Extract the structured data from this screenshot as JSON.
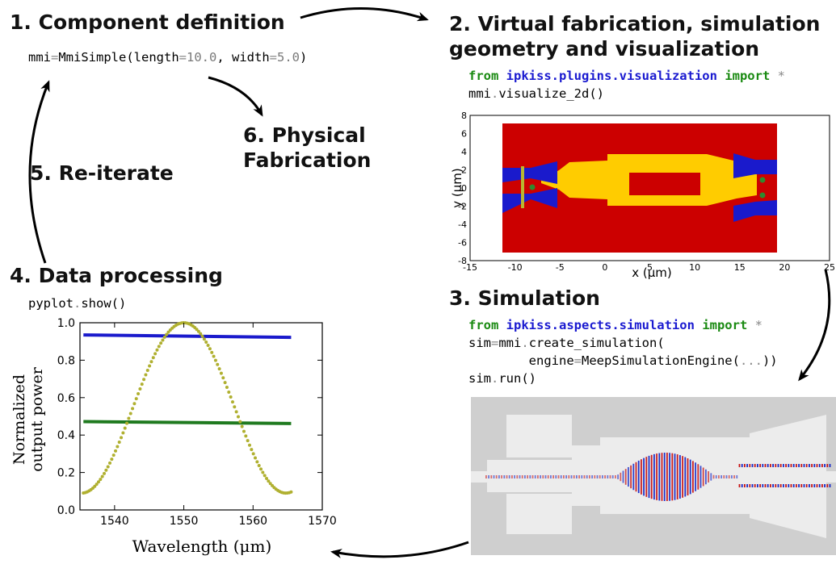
{
  "steps": {
    "s1": {
      "title": "1. Component definition"
    },
    "s2": {
      "title_line1": "2. Virtual fabrication, simulation",
      "title_line2": "geometry and visualization"
    },
    "s3": {
      "title": "3. Simulation"
    },
    "s4": {
      "title": "4. Data processing"
    },
    "s5": {
      "title": "5. Re-iterate"
    },
    "s6": {
      "title_line1": "6. Physical",
      "title_line2": "Fabrication"
    }
  },
  "code": {
    "s1": {
      "var": "mmi",
      "eq": "=",
      "cls": "MmiSimple(length",
      "eq2": "=",
      "len": "10.0",
      "sep": ", width",
      "eq3": "=",
      "wid": "5.0",
      "close": ")"
    },
    "s2_line1": {
      "kw1": "from",
      "mod": "ipkiss.plugins.visualization",
      "kw2": "import",
      "star": "*"
    },
    "s2_line2": {
      "obj": "mmi",
      "dot": ".",
      "call": "visualize_2d()"
    },
    "s3_line1": {
      "kw1": "from",
      "mod": "ipkiss.aspects.simulation",
      "kw2": "import",
      "star": "*"
    },
    "s3_line2": {
      "a": "sim",
      "eq": "=",
      "b": "mmi",
      "dot": ".",
      "c": "create_simulation("
    },
    "s3_line3": {
      "a": "engine",
      "eq": "=",
      "b": "MeepSimulationEngine(",
      "dots": "...",
      "c": "))"
    },
    "s3_line4": {
      "a": "sim",
      "dot": ".",
      "b": "run()"
    },
    "s4_line1": {
      "a": "pyplot",
      "dot": ".",
      "b": "show()"
    }
  },
  "geometry_plot": {
    "xlabel": "x (μm)",
    "ylabel": "y (μm)",
    "xticks": [
      "-15",
      "-10",
      "-5",
      "0",
      "5",
      "10",
      "15",
      "20",
      "25"
    ],
    "yticks": [
      "8",
      "6",
      "4",
      "2",
      "0",
      "-2",
      "-4",
      "-6",
      "-8"
    ],
    "colors": {
      "background": "#cc0000",
      "cladding": "#ffcc00",
      "waveguide": "#1a1acc",
      "port": "#2e8b2e",
      "frame": "#000000"
    }
  },
  "simulation_field": {
    "colors": {
      "background": "#cfcfcf",
      "guide": "#ededed",
      "field_pos": "#c81414",
      "field_neg": "#1428c8"
    }
  },
  "chart_data": {
    "type": "line",
    "title": "",
    "xlabel": "Wavelength (μm)",
    "ylabel": "Normalized output power",
    "ylabel_line1": "Normalized",
    "ylabel_line2": "output power",
    "xlim": [
      1535,
      1570
    ],
    "ylim": [
      0.0,
      1.0
    ],
    "xticks": [
      "1540",
      "1550",
      "1560",
      "1570"
    ],
    "yticks": [
      "0.0",
      "0.2",
      "0.4",
      "0.6",
      "0.8",
      "1.0"
    ],
    "series": [
      {
        "color": "#1a1acc",
        "style": "line",
        "x": [
          1535.5,
          1565.5
        ],
        "y": [
          0.935,
          0.922
        ]
      },
      {
        "color": "#1f7a1f",
        "style": "line",
        "x": [
          1535.5,
          1565.5
        ],
        "y": [
          0.472,
          0.462
        ]
      },
      {
        "color": "#b0b030",
        "style": "dotted",
        "shape": "cosine",
        "x": [
          1535.5,
          1540,
          1545,
          1550,
          1555,
          1560,
          1565.5
        ],
        "y": [
          0.1,
          0.42,
          0.86,
          1.0,
          0.8,
          0.36,
          0.09
        ]
      }
    ]
  }
}
